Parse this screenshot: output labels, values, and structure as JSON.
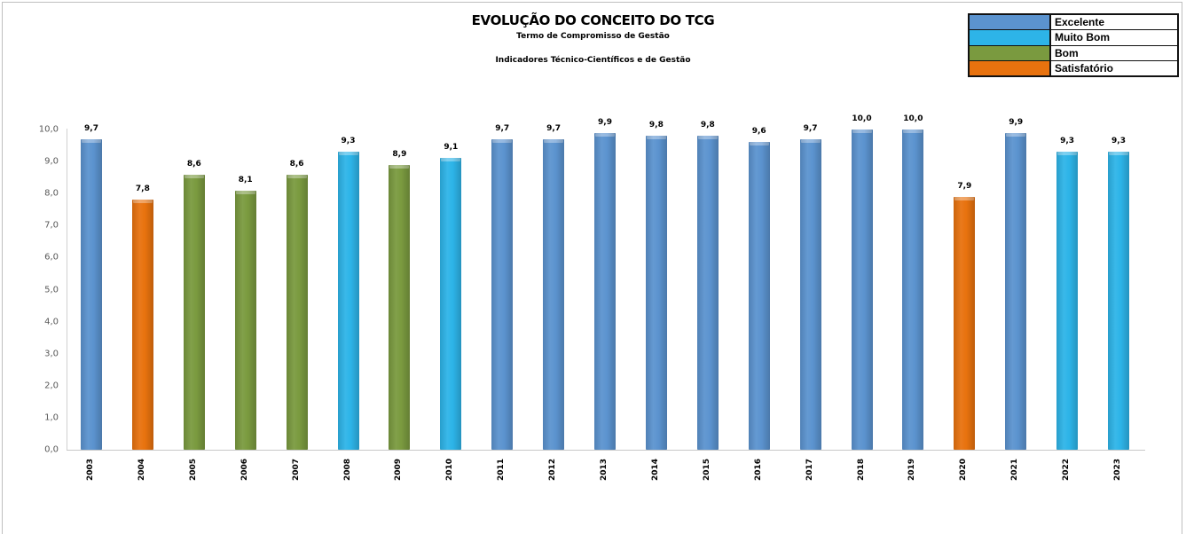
{
  "chart_data": {
    "type": "bar",
    "title": "EVOLUÇÃO DO CONCEITO DO TCG",
    "subtitle": "Termo de Compromisso de Gestão",
    "subtitle2": "Indicadores Técnico-Científicos e de Gestão",
    "xlabel": "",
    "ylabel": "",
    "ylim": [
      0,
      10
    ],
    "y_ticks": [
      "0,0",
      "1,0",
      "2,0",
      "3,0",
      "4,0",
      "5,0",
      "6,0",
      "7,0",
      "8,0",
      "9,0",
      "10,0"
    ],
    "grid": false,
    "legend_position": "top-right",
    "categories": [
      "2003",
      "2004",
      "2005",
      "2006",
      "2007",
      "2008",
      "2009",
      "2010",
      "2011",
      "2012",
      "2013",
      "2014",
      "2015",
      "2016",
      "2017",
      "2018",
      "2019",
      "2020",
      "2021",
      "2022",
      "2023"
    ],
    "values": [
      9.7,
      7.8,
      8.6,
      8.1,
      8.6,
      9.3,
      8.9,
      9.1,
      9.7,
      9.7,
      9.9,
      9.8,
      9.8,
      9.6,
      9.7,
      10.0,
      10.0,
      7.9,
      9.9,
      9.3,
      9.3
    ],
    "value_labels": [
      "9,7",
      "7,8",
      "8,6",
      "8,1",
      "8,6",
      "9,3",
      "8,9",
      "9,1",
      "9,7",
      "9,7",
      "9,9",
      "9,8",
      "9,8",
      "9,6",
      "9,7",
      "10,0",
      "10,0",
      "7,9",
      "9,9",
      "9,3",
      "9,3"
    ],
    "bar_categories": [
      "Excelente",
      "Satisfatório",
      "Bom",
      "Bom",
      "Bom",
      "Muito Bom",
      "Bom",
      "Muito Bom",
      "Excelente",
      "Excelente",
      "Excelente",
      "Excelente",
      "Excelente",
      "Excelente",
      "Excelente",
      "Excelente",
      "Excelente",
      "Satisfatório",
      "Excelente",
      "Muito Bom",
      "Muito Bom"
    ],
    "legend": [
      {
        "label": "Excelente",
        "color": "#5b93cf"
      },
      {
        "label": "Muito Bom",
        "color": "#2db4e8"
      },
      {
        "label": "Bom",
        "color": "#7a9a3f"
      },
      {
        "label": "Satisfatório",
        "color": "#e8720e"
      }
    ]
  }
}
